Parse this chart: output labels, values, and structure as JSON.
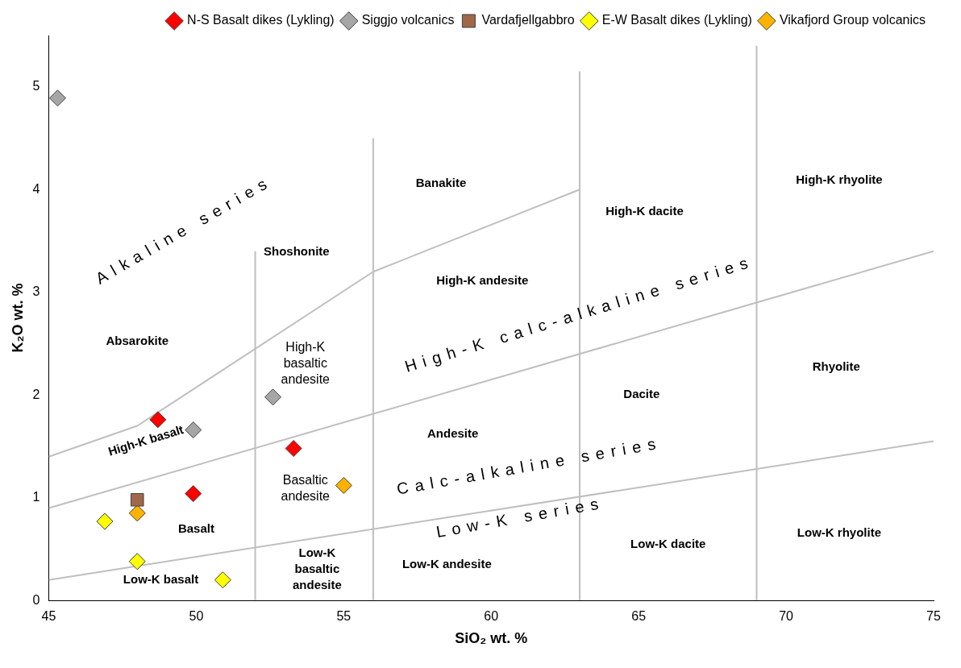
{
  "chart_data": {
    "type": "scatter",
    "xlabel": "SiO₂ wt. %",
    "ylabel": "K₂O wt. %",
    "xlim": [
      45,
      75
    ],
    "xticks": [
      45,
      50,
      55,
      60,
      65,
      70,
      75
    ],
    "ylim": [
      0,
      5.5
    ],
    "yticks": [
      0,
      1,
      2,
      3,
      4,
      5
    ],
    "grid": false,
    "legend": "top right",
    "series": [
      {
        "type": "line",
        "color": "#bfbfbf",
        "marker": "none",
        "x": [
          45,
          48,
          56,
          63
        ],
        "values": [
          1.4,
          1.7,
          3.2,
          4.0
        ]
      },
      {
        "type": "line",
        "color": "#bfbfbf",
        "marker": "none",
        "x": [
          45,
          75
        ],
        "values": [
          0.9,
          3.4
        ]
      },
      {
        "type": "line",
        "color": "#bfbfbf",
        "marker": "none",
        "x": [
          45,
          75
        ],
        "values": [
          0.2,
          1.55
        ]
      },
      {
        "type": "line",
        "color": "#bfbfbf",
        "marker": "none",
        "x": [
          52,
          52
        ],
        "values": [
          0,
          3.4
        ]
      },
      {
        "type": "line",
        "color": "#bfbfbf",
        "marker": "none",
        "x": [
          56,
          56
        ],
        "values": [
          0,
          4.5
        ]
      },
      {
        "type": "line",
        "color": "#bfbfbf",
        "marker": "none",
        "x": [
          63,
          63
        ],
        "values": [
          0,
          5.15
        ]
      },
      {
        "type": "line",
        "color": "#bfbfbf",
        "marker": "none",
        "x": [
          69,
          69
        ],
        "values": [
          0,
          5.4
        ]
      },
      {
        "name": "N-S Basalt dikes (Lykling)",
        "color": "#ff0000",
        "marker": "diamond",
        "x": [
          48.7,
          49.9,
          53.3
        ],
        "values": [
          1.76,
          1.04,
          1.48
        ]
      },
      {
        "name": "Siggjo volcanics",
        "color": "#a6a6a6",
        "marker": "diamond",
        "x": [
          45.3,
          49.9,
          52.6
        ],
        "values": [
          4.89,
          1.66,
          1.98
        ]
      },
      {
        "name": "Vardafjellgabbro",
        "color": "#a0674b",
        "marker": "square",
        "x": [
          48.0
        ],
        "values": [
          0.98
        ]
      },
      {
        "name": "E-W Basalt dikes (Lykling)",
        "color": "#ffff00",
        "marker": "diamond",
        "x": [
          46.9,
          48.0,
          50.9
        ],
        "values": [
          0.77,
          0.38,
          0.2
        ]
      },
      {
        "name": "Vikafjord Group volcanics",
        "color": "#ffb300",
        "marker": "diamond",
        "x": [
          48.0,
          55.0
        ],
        "values": [
          0.85,
          1.12
        ]
      }
    ],
    "annotations": [
      "Absarokite",
      "High-K basalt",
      "Basalt",
      "Low-K basalt",
      "Shoshonite",
      "High-K\nbasaltic\nandesite",
      "Basaltic\nandesite",
      "Low-K\nbasaltic\nandesite",
      "Banakite",
      "High-K andesite",
      "Andesite",
      "Low-K andesite",
      "High-K dacite",
      "Dacite",
      "Low-K dacite",
      "High-K rhyolite",
      "Rhyolite",
      "Low-K rhyolite",
      "Alkaline series",
      "High-K calc-alkaline series",
      "Calc-alkaline series",
      "Low-K series"
    ]
  }
}
